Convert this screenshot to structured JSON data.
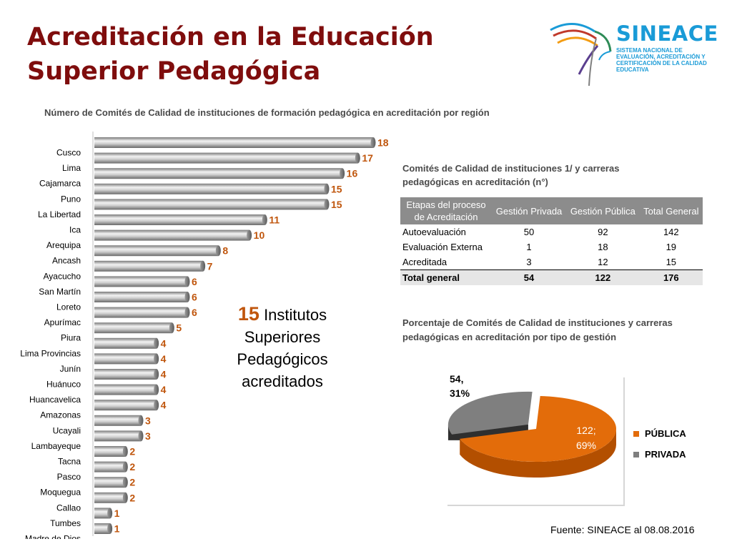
{
  "title": "Acreditación en la Educación Superior Pedagógica",
  "logo": {
    "name": "SINEACE",
    "subtitle": "SISTEMA NACIONAL DE EVALUACIÓN, ACREDITACIÓN Y CERTIFICACIÓN DE LA CALIDAD EDUCATIVA"
  },
  "callout": {
    "number": "15",
    "text": "Institutos Superiores Pedagógicos acreditados"
  },
  "table": {
    "title": "Comités de Calidad de  instituciones 1/ y carreras pedagógicas en acreditación  (n°)",
    "headers": [
      "Etapas del proceso de Acreditación",
      "Gestión Privada",
      "Gestión Pública",
      "Total General"
    ],
    "rows": [
      [
        "Autoevaluación",
        "50",
        "92",
        "142"
      ],
      [
        "Evaluación Externa",
        "1",
        "18",
        "19"
      ],
      [
        "Acreditada",
        "3",
        "12",
        "15"
      ]
    ],
    "total": [
      "Total general",
      "54",
      "122",
      "176"
    ]
  },
  "source": "Fuente: SINEACE al  08.08.2016",
  "colors": {
    "title": "#7f0d0d",
    "value_label": "#c0560d",
    "publica": "#e36c0a",
    "privada": "#7f7f7f",
    "logo": "#1a9bd7"
  },
  "chart_data": [
    {
      "type": "bar",
      "orientation": "horizontal",
      "title": "Número de Comités de Calidad de instituciones de formación pedagógica en acreditación por región",
      "categories": [
        "Cusco",
        "Lima",
        "Cajamarca",
        "Puno",
        "La Libertad",
        "Ica",
        "Arequipa",
        "Ancash",
        "Ayacucho",
        "San Martín",
        "Loreto",
        "Apurímac",
        "Piura",
        "Lima Provincias",
        "Junín",
        "Huánuco",
        "Huancavelica",
        "Amazonas",
        "Ucayali",
        "Lambayeque",
        "Tacna",
        "Pasco",
        "Moquegua",
        "Callao",
        "Tumbes",
        "Madre de Dios"
      ],
      "values": [
        18,
        17,
        16,
        15,
        15,
        11,
        10,
        8,
        7,
        6,
        6,
        6,
        5,
        4,
        4,
        4,
        4,
        4,
        3,
        3,
        2,
        2,
        2,
        2,
        1,
        1
      ],
      "xlim": [
        0,
        18
      ],
      "grid": false,
      "data_labels": true
    },
    {
      "type": "pie",
      "title": "Porcentaje de Comités de Calidad de instituciones y carreras pedagógicas en acreditación por tipo de gestión",
      "slices": [
        {
          "name": "PÚBLICA",
          "value": 122,
          "percent": 69,
          "label": "122; 69%"
        },
        {
          "name": "PRIVADA",
          "value": 54,
          "percent": 31,
          "label": "54, 31%"
        }
      ],
      "legend": "right"
    }
  ]
}
